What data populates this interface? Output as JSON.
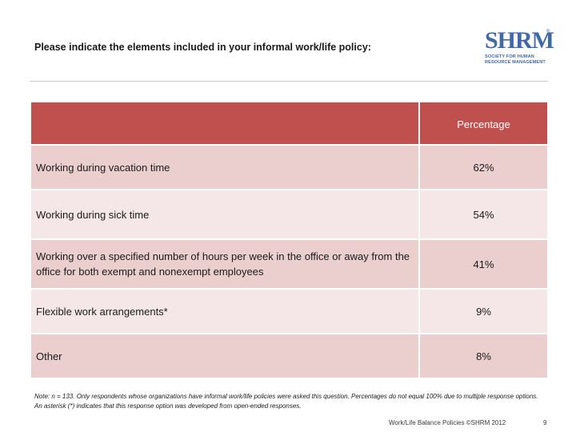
{
  "title": "Please indicate the elements included in your informal work/life policy:",
  "logo": {
    "mark": "SHRM",
    "reg": "®",
    "line1": "SOCIETY FOR HUMAN",
    "line2": "RESOURCE MANAGEMENT"
  },
  "table": {
    "header_label": "",
    "header_value": "Percentage",
    "rows": [
      {
        "label": "Working during vacation time",
        "value": "62%"
      },
      {
        "label": "Working during sick time",
        "value": "54%"
      },
      {
        "label": "Working over a specified number of hours per week in the office or away from the office for both exempt and nonexempt employees",
        "value": "41%"
      },
      {
        "label": "Flexible work arrangements*",
        "value": "9%"
      },
      {
        "label": "Other",
        "value": "8%"
      }
    ]
  },
  "note": "Note: n = 133. Only respondents whose organizations have informal work/life policies were asked this question. Percentages do not equal 100% due to multiple response options. An asterisk (*) indicates that this response option was developed from open-ended responses.",
  "footer": "Work/Life Balance Policies ©SHRM 2012",
  "page_number": "9",
  "colors": {
    "header": "#c0504d",
    "row_dark": "#ebcfce",
    "row_light": "#f5e7e7",
    "logo_blue": "#3f6aa8"
  }
}
